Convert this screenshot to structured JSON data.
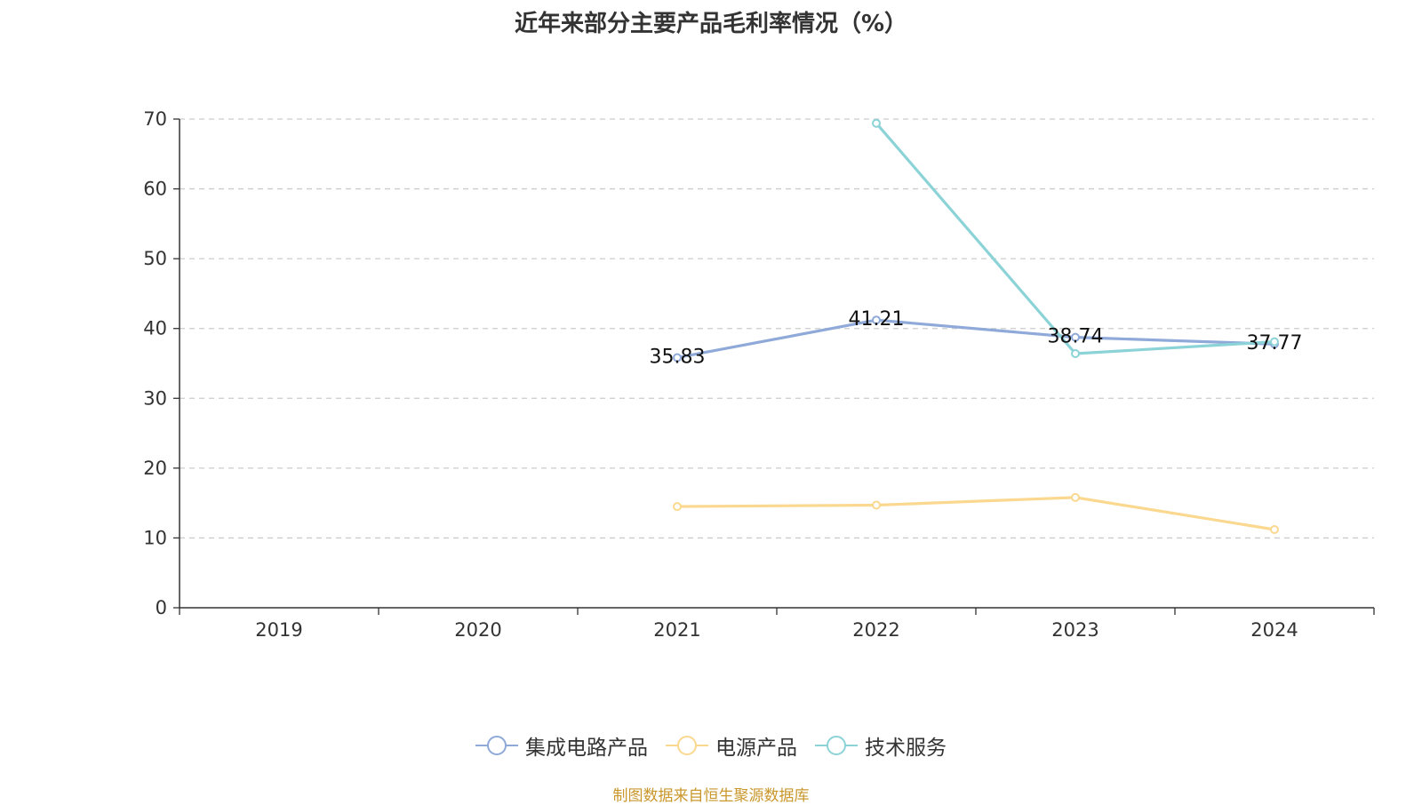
{
  "title": "近年来部分主要产品毛利率情况（%）",
  "source_note": "制图数据来自恒生聚源数据库",
  "colors": {
    "axis": "#333333",
    "grid": "#cccccc",
    "text": "#333333"
  },
  "legend": {
    "items": [
      {
        "label": "集成电路产品",
        "color": "#8fa9d9"
      },
      {
        "label": "电源产品",
        "color": "#fbd88f"
      },
      {
        "label": "技术服务",
        "color": "#8cd3d8"
      }
    ]
  },
  "chart_data": {
    "type": "line",
    "categories": [
      "2019",
      "2020",
      "2021",
      "2022",
      "2023",
      "2024"
    ],
    "ylim": [
      0,
      70
    ],
    "yticks": [
      0,
      10,
      20,
      30,
      40,
      50,
      60,
      70
    ],
    "grid": true,
    "legend_position": "bottom",
    "series": [
      {
        "name": "集成电路产品",
        "color": "#8fa9d9",
        "values": [
          null,
          null,
          35.83,
          41.21,
          38.74,
          37.77
        ],
        "labels": [
          "",
          "",
          "35.83",
          "41.21",
          "38.74",
          "37.77"
        ]
      },
      {
        "name": "电源产品",
        "color": "#fbd88f",
        "values": [
          null,
          null,
          14.5,
          14.7,
          15.8,
          11.2
        ],
        "labels": []
      },
      {
        "name": "技术服务",
        "color": "#8cd3d8",
        "values": [
          null,
          null,
          null,
          69.4,
          36.4,
          38.1
        ],
        "labels": []
      }
    ]
  }
}
